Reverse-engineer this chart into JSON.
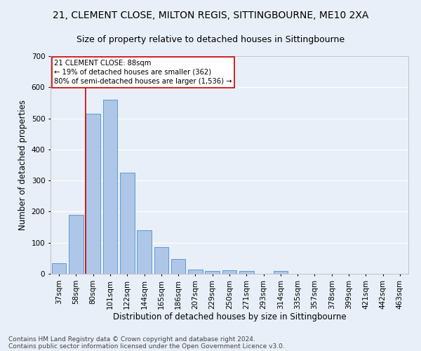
{
  "title1": "21, CLEMENT CLOSE, MILTON REGIS, SITTINGBOURNE, ME10 2XA",
  "title2": "Size of property relative to detached houses in Sittingbourne",
  "xlabel": "Distribution of detached houses by size in Sittingbourne",
  "ylabel": "Number of detached properties",
  "footnote1": "Contains HM Land Registry data © Crown copyright and database right 2024.",
  "footnote2": "Contains public sector information licensed under the Open Government Licence v3.0.",
  "categories": [
    "37sqm",
    "58sqm",
    "80sqm",
    "101sqm",
    "122sqm",
    "144sqm",
    "165sqm",
    "186sqm",
    "207sqm",
    "229sqm",
    "250sqm",
    "271sqm",
    "293sqm",
    "314sqm",
    "335sqm",
    "357sqm",
    "378sqm",
    "399sqm",
    "421sqm",
    "442sqm",
    "463sqm"
  ],
  "values": [
    35,
    190,
    515,
    560,
    325,
    140,
    85,
    47,
    13,
    10,
    12,
    10,
    0,
    8,
    0,
    0,
    0,
    0,
    0,
    0,
    0
  ],
  "bar_color": "#aec6e8",
  "bar_edge_color": "#5b9bd5",
  "vline_color": "#cc0000",
  "annotation_text": "21 CLEMENT CLOSE: 88sqm\n← 19% of detached houses are smaller (362)\n80% of semi-detached houses are larger (1,536) →",
  "annotation_box_color": "#ffffff",
  "annotation_box_edgecolor": "#cc0000",
  "ylim": [
    0,
    700
  ],
  "yticks": [
    0,
    100,
    200,
    300,
    400,
    500,
    600,
    700
  ],
  "bg_color": "#e8eff8",
  "plot_bg_color": "#e8eff8",
  "grid_color": "#ffffff",
  "title1_fontsize": 10,
  "title2_fontsize": 9,
  "xlabel_fontsize": 8.5,
  "ylabel_fontsize": 8.5,
  "tick_fontsize": 7.5,
  "footnote_fontsize": 6.5,
  "vline_bin_index": 2,
  "n_categories": 21
}
